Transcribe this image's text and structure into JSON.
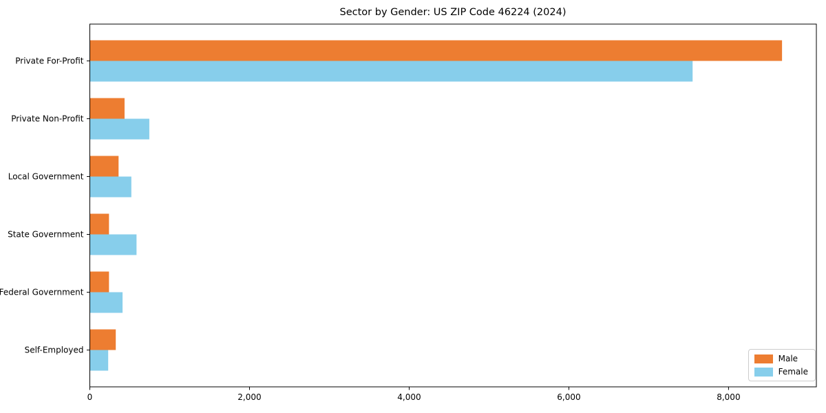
{
  "chart_data": {
    "type": "bar",
    "orientation": "horizontal",
    "title": "Sector by Gender: US ZIP Code 46224 (2024)",
    "categories": [
      "Private For-Profit",
      "Private Non-Profit",
      "Local Government",
      "State Government",
      "Federal Government",
      "Self-Employed"
    ],
    "series": [
      {
        "name": "Male",
        "color": "#ed7d31",
        "values": [
          8670,
          435,
          360,
          240,
          240,
          325
        ]
      },
      {
        "name": "Female",
        "color": "#87ceeb",
        "values": [
          7550,
          745,
          520,
          585,
          410,
          230
        ]
      }
    ],
    "xlabel": "",
    "ylabel": "",
    "xlim": [
      0,
      9100
    ],
    "xticks": [
      0,
      2000,
      4000,
      6000,
      8000
    ],
    "xtick_labels": [
      "0",
      "2,000",
      "4,000",
      "6,000",
      "8,000"
    ],
    "grid": false,
    "background_color": "#ffffff",
    "spine_color": "#000000",
    "legend": {
      "position": "lower right",
      "entries": [
        "Male",
        "Female"
      ]
    }
  }
}
